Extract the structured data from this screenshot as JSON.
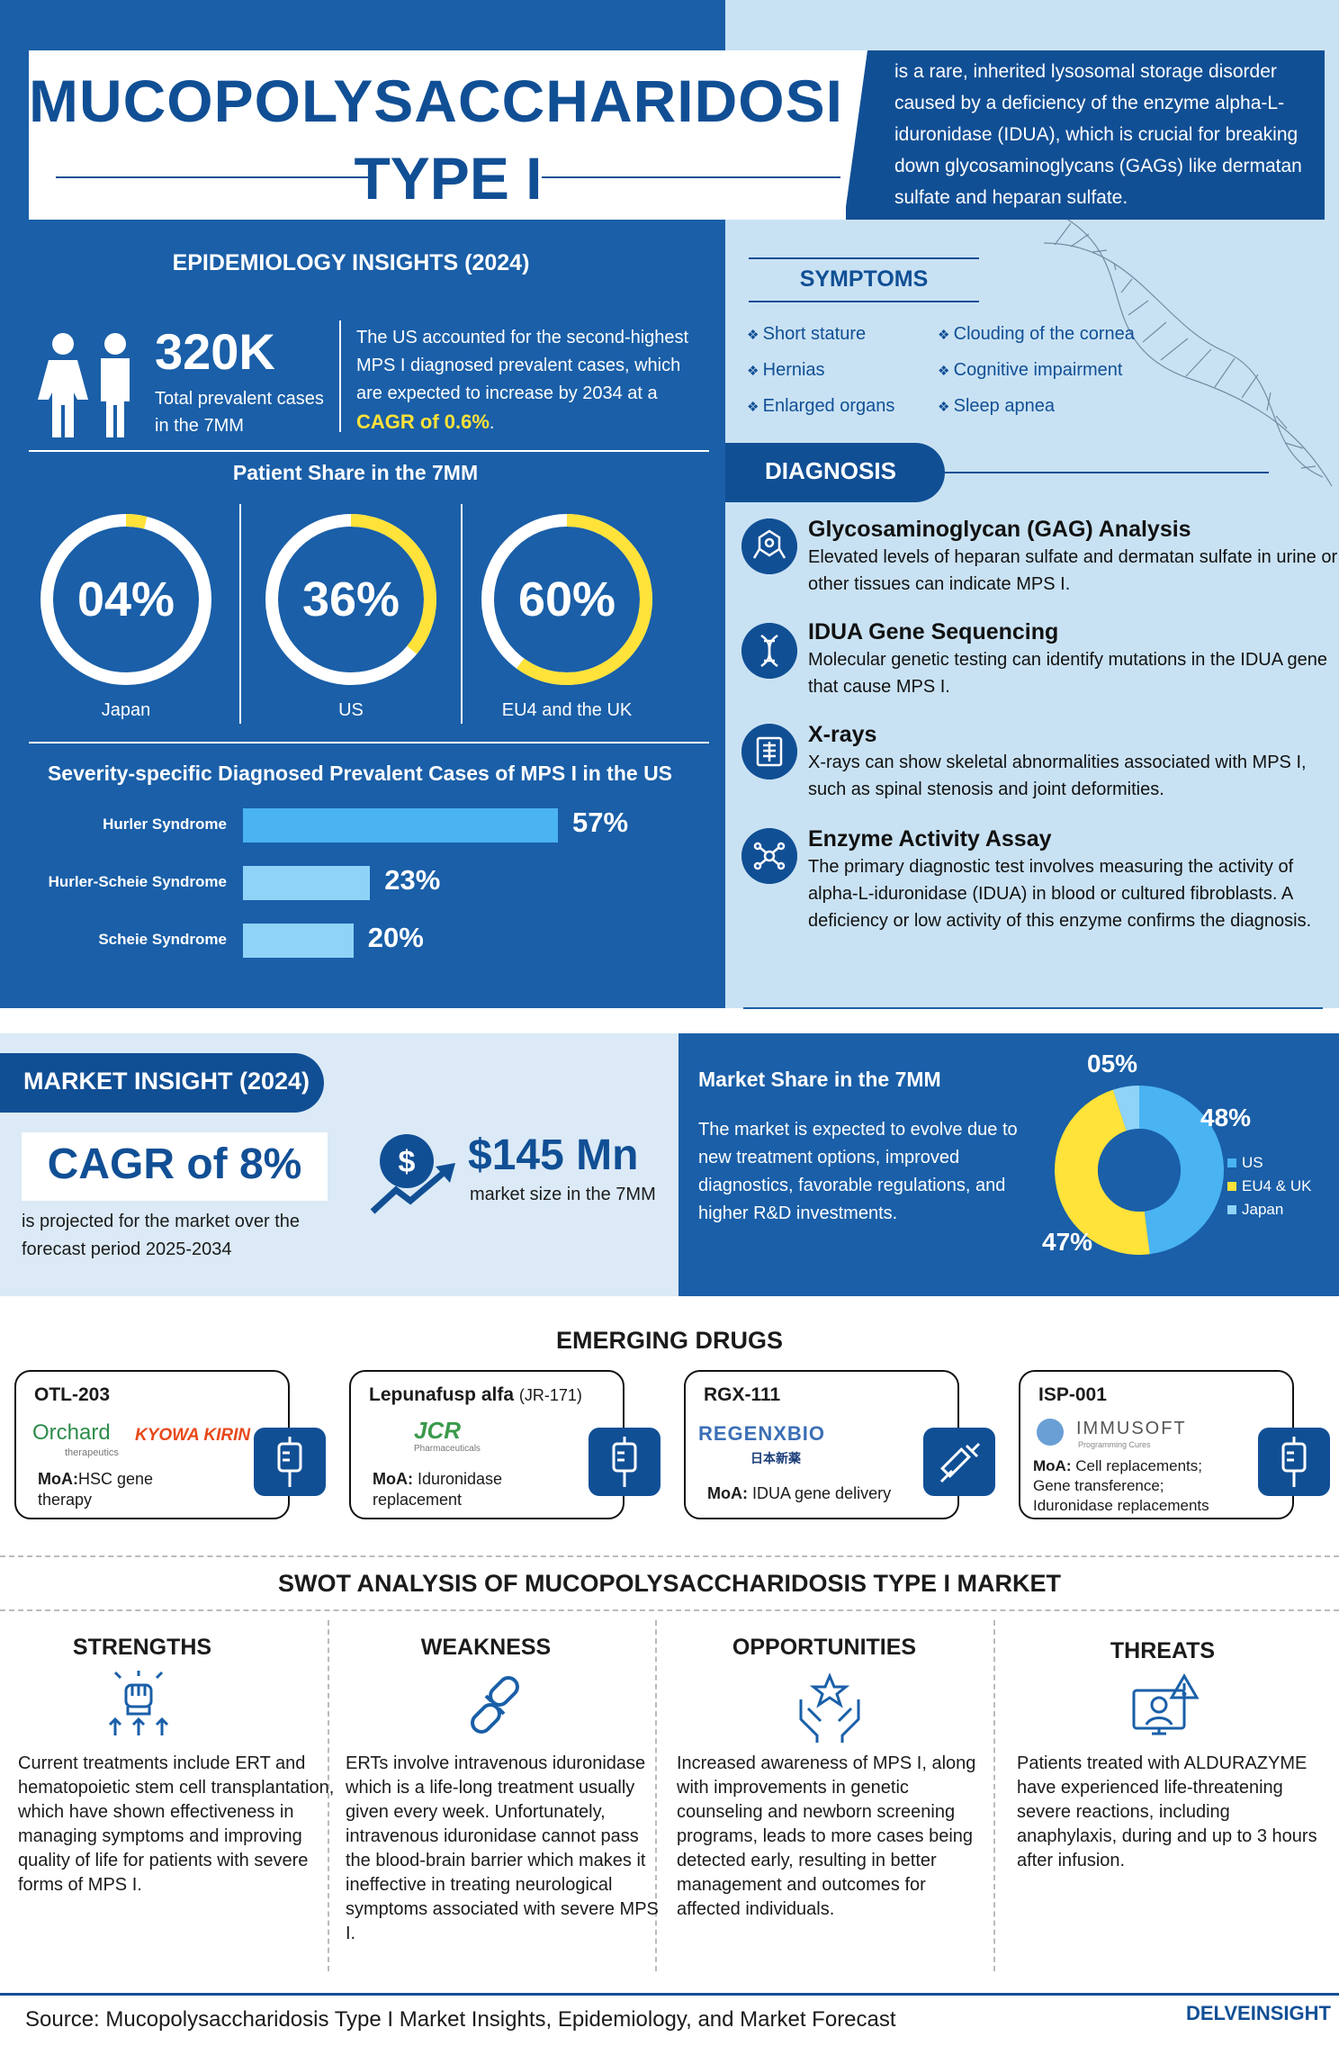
{
  "title": {
    "line1": "MUCOPOLYSACCHARIDOSIS",
    "line2": "TYPE I"
  },
  "definition": "is a rare, inherited lysosomal storage disorder caused by a deficiency of the enzyme alpha-L-iduronidase (IDUA), which is crucial for breaking down glycosaminoglycans (GAGs) like dermatan sulfate and heparan sulfate.",
  "epidemiology": {
    "title": "EPIDEMIOLOGY INSIGHTS (2024)",
    "stat": "320K",
    "stat_label": "Total prevalent cases in the 7MM",
    "us_text": "The US accounted for the second-highest MPS I diagnosed prevalent cases, which are expected to increase by 2034 at a",
    "us_cagr": "CAGR of 0.6%",
    "us_end": "."
  },
  "patient_share": {
    "title": "Patient Share in the 7MM",
    "items": [
      {
        "label": "Japan",
        "value_text": "04%",
        "value": 4
      },
      {
        "label": "US",
        "value_text": "36%",
        "value": 36
      },
      {
        "label": "EU4 and the UK",
        "value_text": "60%",
        "value": 60
      }
    ]
  },
  "severity": {
    "title": "Severity-specific Diagnosed Prevalent Cases of MPS I in the US",
    "items": [
      {
        "label": "Hurler Syndrome",
        "value_text": "57%",
        "value": 57
      },
      {
        "label": "Hurler-Scheie Syndrome",
        "value_text": "23%",
        "value": 23
      },
      {
        "label": "Scheie Syndrome",
        "value_text": "20%",
        "value": 20
      }
    ]
  },
  "symptoms": {
    "title": "SYMPTOMS",
    "items": [
      "Short stature",
      "Clouding of the cornea",
      "Hernias",
      "Cognitive impairment",
      "Enlarged organs",
      "Sleep apnea"
    ]
  },
  "diagnosis": {
    "title": "DIAGNOSIS",
    "items": [
      {
        "head": "Glycosaminoglycan (GAG) Analysis",
        "text": "Elevated levels of heparan sulfate and dermatan sulfate in urine or other tissues can indicate MPS I.",
        "icon": "molecule-icon"
      },
      {
        "head": "IDUA Gene Sequencing",
        "text": "Molecular genetic testing can identify mutations in the IDUA gene that cause MPS I.",
        "icon": "dna-icon"
      },
      {
        "head": "X-rays",
        "text": "X-rays can show skeletal abnormalities associated with MPS I, such as spinal stenosis and joint deformities.",
        "icon": "xray-icon"
      },
      {
        "head": "Enzyme Activity Assay",
        "text": "The primary diagnostic test involves measuring the activity of alpha-L-iduronidase (IDUA) in blood or cultured fibroblasts. A deficiency or low activity of this enzyme confirms the diagnosis.",
        "icon": "enzyme-icon"
      }
    ]
  },
  "market": {
    "title": "MARKET INSIGHT (2024)",
    "cagr": "CAGR of 8%",
    "cagr_sub": "is projected for the market over the forecast period 2025-2034",
    "size": "$145 Mn",
    "size_sub": "market size in the 7MM",
    "share_title": "Market Share in the 7MM",
    "share_text": "The market is expected to evolve due to new treatment options, improved diagnostics, favorable regulations, and higher R&D investments.",
    "share": [
      {
        "label": "US",
        "value_text": "48%",
        "value": 48,
        "color": "#4ab3f2"
      },
      {
        "label": "EU4 & UK",
        "value_text": "47%",
        "value": 47,
        "color": "#ffe23a"
      },
      {
        "label": "Japan",
        "value_text": "05%",
        "value": 5,
        "color": "#8fd3f8"
      }
    ]
  },
  "drugs": {
    "title": "EMERGING DRUGS",
    "items": [
      {
        "name": "OTL-203",
        "name_extra": "",
        "company": "Orchard",
        "company_sub": "therapeutics",
        "company2": "KYOWA KIRIN",
        "moa_label": "MoA:",
        "moa": "HSC gene therapy",
        "icon": "iv-bag-icon"
      },
      {
        "name": "Lepunafusp alfa",
        "name_extra": "(JR-171)",
        "company": "JCR",
        "company_sub": "Pharmaceuticals",
        "company2": "",
        "moa_label": "MoA:",
        "moa": "Iduronidase replacement",
        "icon": "iv-bag-icon"
      },
      {
        "name": "RGX-111",
        "name_extra": "",
        "company": "REGENXBIO",
        "company_sub": "",
        "company2": "日本新薬",
        "moa_label": "MoA:",
        "moa": "IDUA gene delivery",
        "icon": "syringe-icon"
      },
      {
        "name": "ISP-001",
        "name_extra": "",
        "company": "IMMUSOFT",
        "company_sub": "Programming Cures",
        "company2": "",
        "moa_label": "MoA:",
        "moa": "Cell replacements; Gene transference; Iduronidase replacements",
        "icon": "iv-bag-icon"
      }
    ]
  },
  "swot": {
    "title": "SWOT ANALYSIS OF MUCOPOLYSACCHARIDOSIS TYPE I MARKET",
    "items": [
      {
        "head": "STRENGTHS",
        "text": "Current treatments include ERT and hematopoietic stem cell transplantation, which have shown effectiveness in managing symptoms and improving quality of life for patients with severe forms of MPS I."
      },
      {
        "head": "WEAKNESS",
        "text": "ERTs involve intravenous iduronidase which is a life-long treatment usually given every week. Unfortunately, intravenous iduronidase cannot pass the blood-brain barrier which makes it ineffective in treating neurological symptoms associated with severe MPS I."
      },
      {
        "head": "OPPORTUNITIES",
        "text": "Increased awareness of MPS I, along with improvements in genetic counseling and newborn screening programs, leads to more cases being detected early, resulting in better management and outcomes for affected individuals."
      },
      {
        "head": "THREATS",
        "text": "Patients treated with ALDURAZYME have experienced life-threatening severe reactions, including anaphylaxis, during and up to 3 hours after infusion."
      }
    ]
  },
  "footer": {
    "source": "Source: Mucopolysaccharidosis Type I Market Insights, Epidemiology, and Market Forecast",
    "logo": "DELVEINSIGHT"
  }
}
